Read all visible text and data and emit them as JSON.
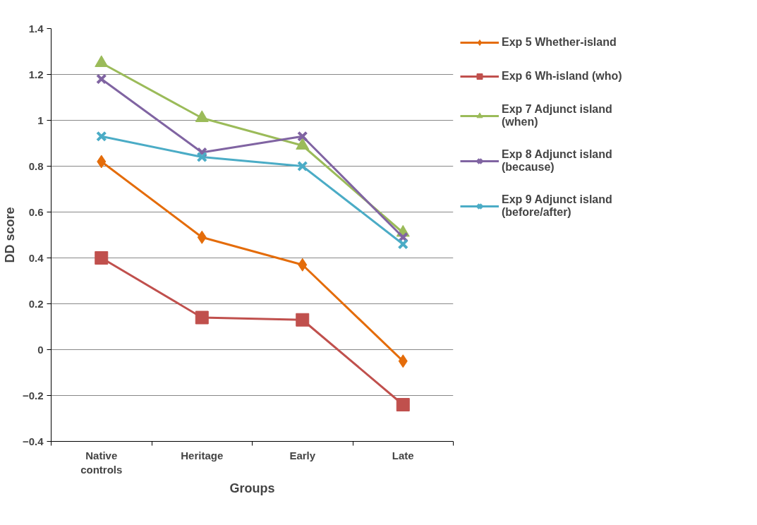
{
  "chart_data": {
    "type": "line",
    "xlabel": "Groups",
    "ylabel": "DD score",
    "categories": [
      "Native controls",
      "Heritage",
      "Early",
      "Late"
    ],
    "ylim": [
      -0.4,
      1.4
    ],
    "yticks": [
      -0.4,
      -0.2,
      0,
      0.2,
      0.4,
      0.6,
      0.8,
      1,
      1.2,
      1.4
    ],
    "grid": "y",
    "legend": "right",
    "series": [
      {
        "name": "Exp 5 Whether-island",
        "color": "#e46c0a",
        "marker": "diamond",
        "values": [
          0.82,
          0.49,
          0.37,
          -0.05
        ]
      },
      {
        "name": "Exp 6 Wh-island (who)",
        "color": "#c0504d",
        "marker": "square",
        "values": [
          0.4,
          0.14,
          0.13,
          -0.24
        ]
      },
      {
        "name": "Exp 7 Adjunct island (when)",
        "color": "#9bbb59",
        "marker": "triangle",
        "values": [
          1.25,
          1.01,
          0.89,
          0.51
        ]
      },
      {
        "name": "Exp 8 Adjunct island (because)",
        "color": "#8064a2",
        "marker": "cross",
        "values": [
          1.18,
          0.86,
          0.93,
          0.49
        ]
      },
      {
        "name": "Exp 9 Adjunct island (before/after)",
        "color": "#4bacc6",
        "marker": "cross",
        "values": [
          0.93,
          0.84,
          0.8,
          0.46
        ]
      }
    ]
  }
}
